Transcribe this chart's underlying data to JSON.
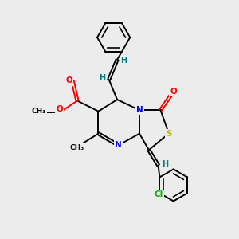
{
  "bg_color": "#ececec",
  "bond_color": "#000000",
  "bond_width": 1.4,
  "dbo": 0.055,
  "atom_colors": {
    "O": "#ff0000",
    "N": "#0000ff",
    "S": "#bbbb00",
    "Cl": "#00bb00",
    "C": "#000000",
    "H": "#008080"
  },
  "font_size": 7.5,
  "fig_size": [
    3.0,
    3.0
  ],
  "dpi": 100
}
